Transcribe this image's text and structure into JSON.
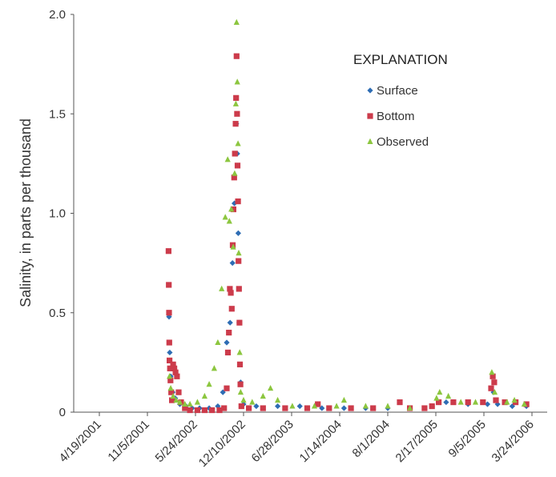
{
  "chart_data": {
    "type": "scatter",
    "title": "",
    "xlabel": "",
    "ylabel": "Salinity, in parts per thousand",
    "ylim": [
      0,
      2.0
    ],
    "y_ticks": [
      "0",
      "0.5",
      "1.0",
      "1.5",
      "2.0"
    ],
    "y_tick_values": [
      0,
      0.5,
      1.0,
      1.5,
      2.0
    ],
    "x_ticks": [
      "4/19/2001",
      "11/5/2001",
      "5/24/2002",
      "12/10/2002",
      "6/28/2003",
      "1/14/2004",
      "8/1/2004",
      "2/17/2005",
      "9/5/2005",
      "3/24/2006"
    ],
    "x_tick_dates": [
      "2001-04-19",
      "2001-11-05",
      "2002-05-24",
      "2002-12-10",
      "2003-06-28",
      "2004-01-14",
      "2004-08-01",
      "2005-02-17",
      "2005-09-05",
      "2006-03-24"
    ],
    "xlim": [
      "2001-04-19",
      "2006-03-24"
    ],
    "grid": false,
    "legend": {
      "title": "EXPLANATION",
      "position": "top-right"
    },
    "series": [
      {
        "name": "Surface",
        "marker": "diamond",
        "color": "#2e6db4",
        "points": [
          [
            "2002-02-03",
            0.48
          ],
          [
            "2002-02-06",
            0.3
          ],
          [
            "2002-02-10",
            0.18
          ],
          [
            "2002-02-18",
            0.1
          ],
          [
            "2002-03-01",
            0.07
          ],
          [
            "2002-03-20",
            0.04
          ],
          [
            "2002-04-15",
            0.03
          ],
          [
            "2002-05-10",
            0.02
          ],
          [
            "2002-06-10",
            0.02
          ],
          [
            "2002-07-20",
            0.02
          ],
          [
            "2002-08-25",
            0.03
          ],
          [
            "2002-09-15",
            0.1
          ],
          [
            "2002-10-01",
            0.35
          ],
          [
            "2002-10-15",
            0.45
          ],
          [
            "2002-10-25",
            0.75
          ],
          [
            "2002-11-02",
            1.05
          ],
          [
            "2002-11-06",
            1.3
          ],
          [
            "2002-11-10",
            1.45
          ],
          [
            "2002-11-14",
            1.3
          ],
          [
            "2002-11-18",
            0.9
          ],
          [
            "2002-11-22",
            0.45
          ],
          [
            "2002-11-28",
            0.15
          ],
          [
            "2002-12-10",
            0.04
          ],
          [
            "2003-02-01",
            0.03
          ],
          [
            "2003-05-01",
            0.03
          ],
          [
            "2003-08-01",
            0.03
          ],
          [
            "2003-11-01",
            0.02
          ],
          [
            "2004-02-01",
            0.02
          ],
          [
            "2004-05-01",
            0.02
          ],
          [
            "2004-08-01",
            0.02
          ],
          [
            "2004-11-01",
            0.02
          ],
          [
            "2005-02-01",
            0.03
          ],
          [
            "2005-04-01",
            0.05
          ],
          [
            "2005-07-01",
            0.04
          ],
          [
            "2005-09-20",
            0.04
          ],
          [
            "2005-10-15",
            0.1
          ],
          [
            "2005-11-01",
            0.04
          ],
          [
            "2006-01-01",
            0.03
          ],
          [
            "2006-03-01",
            0.03
          ]
        ]
      },
      {
        "name": "Bottom",
        "marker": "square",
        "color": "#cc3b4b",
        "points": [
          [
            "2002-02-01",
            0.81
          ],
          [
            "2002-02-02",
            0.64
          ],
          [
            "2002-02-03",
            0.5
          ],
          [
            "2002-02-04",
            0.35
          ],
          [
            "2002-02-05",
            0.26
          ],
          [
            "2002-02-07",
            0.22
          ],
          [
            "2002-02-09",
            0.16
          ],
          [
            "2002-02-12",
            0.1
          ],
          [
            "2002-02-15",
            0.06
          ],
          [
            "2002-02-20",
            0.24
          ],
          [
            "2002-02-25",
            0.22
          ],
          [
            "2002-03-02",
            0.2
          ],
          [
            "2002-03-08",
            0.18
          ],
          [
            "2002-03-15",
            0.1
          ],
          [
            "2002-03-25",
            0.05
          ],
          [
            "2002-04-10",
            0.02
          ],
          [
            "2002-05-01",
            0.01
          ],
          [
            "2002-06-01",
            0.01
          ],
          [
            "2002-07-01",
            0.01
          ],
          [
            "2002-08-01",
            0.01
          ],
          [
            "2002-09-01",
            0.01
          ],
          [
            "2002-09-20",
            0.02
          ],
          [
            "2002-10-01",
            0.12
          ],
          [
            "2002-10-06",
            0.3
          ],
          [
            "2002-10-10",
            0.4
          ],
          [
            "2002-10-14",
            0.62
          ],
          [
            "2002-10-18",
            0.6
          ],
          [
            "2002-10-22",
            0.52
          ],
          [
            "2002-10-26",
            0.84
          ],
          [
            "2002-10-29",
            1.02
          ],
          [
            "2002-11-01",
            1.18
          ],
          [
            "2002-11-04",
            1.3
          ],
          [
            "2002-11-07",
            1.45
          ],
          [
            "2002-11-09",
            1.58
          ],
          [
            "2002-11-11",
            1.79
          ],
          [
            "2002-11-13",
            1.5
          ],
          [
            "2002-11-15",
            1.24
          ],
          [
            "2002-11-17",
            1.06
          ],
          [
            "2002-11-19",
            0.76
          ],
          [
            "2002-11-21",
            0.62
          ],
          [
            "2002-11-23",
            0.45
          ],
          [
            "2002-11-25",
            0.24
          ],
          [
            "2002-11-27",
            0.14
          ],
          [
            "2002-12-01",
            0.03
          ],
          [
            "2003-01-01",
            0.02
          ],
          [
            "2003-03-01",
            0.02
          ],
          [
            "2003-06-01",
            0.02
          ],
          [
            "2003-09-01",
            0.02
          ],
          [
            "2003-10-15",
            0.04
          ],
          [
            "2003-12-01",
            0.02
          ],
          [
            "2004-03-01",
            0.02
          ],
          [
            "2004-06-01",
            0.02
          ],
          [
            "2004-09-20",
            0.05
          ],
          [
            "2004-11-01",
            0.02
          ],
          [
            "2005-01-01",
            0.02
          ],
          [
            "2005-02-01",
            0.03
          ],
          [
            "2005-03-01",
            0.05
          ],
          [
            "2005-05-01",
            0.05
          ],
          [
            "2005-07-01",
            0.05
          ],
          [
            "2005-09-01",
            0.05
          ],
          [
            "2005-10-05",
            0.12
          ],
          [
            "2005-10-12",
            0.18
          ],
          [
            "2005-10-18",
            0.15
          ],
          [
            "2005-10-25",
            0.06
          ],
          [
            "2005-12-01",
            0.05
          ],
          [
            "2006-01-15",
            0.05
          ],
          [
            "2006-03-01",
            0.04
          ]
        ]
      },
      {
        "name": "Observed",
        "marker": "triangle",
        "color": "#8cc63f",
        "points": [
          [
            "2002-02-05",
            0.18
          ],
          [
            "2002-02-10",
            0.12
          ],
          [
            "2002-02-20",
            0.08
          ],
          [
            "2002-03-05",
            0.06
          ],
          [
            "2002-03-20",
            0.05
          ],
          [
            "2002-04-10",
            0.04
          ],
          [
            "2002-05-01",
            0.04
          ],
          [
            "2002-06-01",
            0.05
          ],
          [
            "2002-07-01",
            0.08
          ],
          [
            "2002-07-20",
            0.14
          ],
          [
            "2002-08-10",
            0.22
          ],
          [
            "2002-08-25",
            0.35
          ],
          [
            "2002-09-10",
            0.62
          ],
          [
            "2002-09-25",
            0.98
          ],
          [
            "2002-10-05",
            1.27
          ],
          [
            "2002-10-12",
            0.96
          ],
          [
            "2002-10-20",
            1.02
          ],
          [
            "2002-10-28",
            0.83
          ],
          [
            "2002-11-03",
            1.2
          ],
          [
            "2002-11-08",
            1.55
          ],
          [
            "2002-11-11",
            1.96
          ],
          [
            "2002-11-14",
            1.66
          ],
          [
            "2002-11-17",
            1.35
          ],
          [
            "2002-11-20",
            0.8
          ],
          [
            "2002-11-24",
            0.3
          ],
          [
            "2002-11-28",
            0.1
          ],
          [
            "2002-12-10",
            0.06
          ],
          [
            "2003-01-15",
            0.05
          ],
          [
            "2003-03-01",
            0.08
          ],
          [
            "2003-04-01",
            0.12
          ],
          [
            "2003-05-01",
            0.06
          ],
          [
            "2003-07-01",
            0.03
          ],
          [
            "2003-10-01",
            0.03
          ],
          [
            "2004-01-01",
            0.03
          ],
          [
            "2004-02-01",
            0.06
          ],
          [
            "2004-05-01",
            0.03
          ],
          [
            "2004-08-01",
            0.03
          ],
          [
            "2004-11-01",
            0.02
          ],
          [
            "2005-02-20",
            0.07
          ],
          [
            "2005-03-05",
            0.1
          ],
          [
            "2005-04-10",
            0.08
          ],
          [
            "2005-06-01",
            0.05
          ],
          [
            "2005-08-01",
            0.05
          ],
          [
            "2005-10-08",
            0.2
          ],
          [
            "2005-10-20",
            0.1
          ],
          [
            "2005-12-10",
            0.05
          ],
          [
            "2006-01-10",
            0.06
          ],
          [
            "2006-02-20",
            0.04
          ]
        ]
      }
    ]
  }
}
